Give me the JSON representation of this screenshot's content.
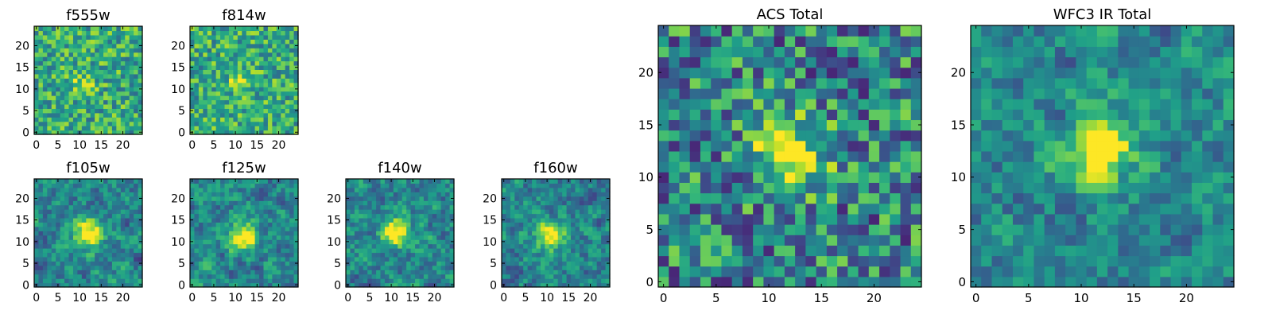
{
  "chart_data": [
    {
      "type": "heatmap",
      "title": "f555w",
      "colormap": "viridis",
      "pattern": "grainy",
      "center": [
        10.5,
        11
      ],
      "seed": 1,
      "xlim": [
        -0.5,
        24.5
      ],
      "ylim": [
        -0.5,
        24.5
      ],
      "xticks": [
        0,
        5,
        10,
        15,
        20
      ],
      "yticks": [
        0,
        5,
        10,
        15,
        20
      ],
      "grid": false
    },
    {
      "type": "heatmap",
      "title": "f814w",
      "colormap": "viridis",
      "pattern": "grainy",
      "center": [
        11,
        12
      ],
      "seed": 2,
      "xlim": [
        -0.5,
        24.5
      ],
      "ylim": [
        -0.5,
        24.5
      ],
      "xticks": [
        0,
        5,
        10,
        15,
        20
      ],
      "yticks": [
        0,
        5,
        10,
        15,
        20
      ],
      "grid": false
    },
    {
      "type": "heatmap",
      "title": "f105w",
      "colormap": "viridis",
      "pattern": "smooth",
      "center": [
        12,
        12
      ],
      "seed": 3,
      "xlim": [
        -0.5,
        24.5
      ],
      "ylim": [
        -0.5,
        24.5
      ],
      "xticks": [
        0,
        5,
        10,
        15,
        20
      ],
      "yticks": [
        0,
        5,
        10,
        15,
        20
      ],
      "grid": false
    },
    {
      "type": "heatmap",
      "title": "f125w",
      "colormap": "viridis",
      "pattern": "smooth",
      "center": [
        12,
        11
      ],
      "seed": 4,
      "xlim": [
        -0.5,
        24.5
      ],
      "ylim": [
        -0.5,
        24.5
      ],
      "xticks": [
        0,
        5,
        10,
        15,
        20
      ],
      "yticks": [
        0,
        5,
        10,
        15,
        20
      ],
      "grid": false
    },
    {
      "type": "heatmap",
      "title": "f140w",
      "colormap": "viridis",
      "pattern": "smooth",
      "center": [
        11,
        12
      ],
      "seed": 5,
      "xlim": [
        -0.5,
        24.5
      ],
      "ylim": [
        -0.5,
        24.5
      ],
      "xticks": [
        0,
        5,
        10,
        15,
        20
      ],
      "yticks": [
        0,
        5,
        10,
        15,
        20
      ],
      "grid": false
    },
    {
      "type": "heatmap",
      "title": "f160w",
      "colormap": "viridis",
      "pattern": "smooth",
      "center": [
        11,
        12
      ],
      "seed": 6,
      "xlim": [
        -0.5,
        24.5
      ],
      "ylim": [
        -0.5,
        24.5
      ],
      "xticks": [
        0,
        5,
        10,
        15,
        20
      ],
      "yticks": [
        0,
        5,
        10,
        15,
        20
      ],
      "grid": false
    },
    {
      "type": "heatmap",
      "title": "ACS Total",
      "colormap": "viridis",
      "pattern": "blocky",
      "center": [
        12,
        12
      ],
      "seed": 7,
      "xlim": [
        -0.5,
        24.5
      ],
      "ylim": [
        -0.5,
        24.5
      ],
      "xticks": [
        0,
        5,
        10,
        15,
        20
      ],
      "yticks": [
        0,
        5,
        10,
        15,
        20
      ],
      "grid": false
    },
    {
      "type": "heatmap",
      "title": "WFC3 IR Total",
      "colormap": "viridis",
      "pattern": "smooth",
      "center": [
        11.5,
        12.5
      ],
      "seed": 8,
      "xlim": [
        -0.5,
        24.5
      ],
      "ylim": [
        -0.5,
        24.5
      ],
      "xticks": [
        0,
        5,
        10,
        15,
        20
      ],
      "yticks": [
        0,
        5,
        10,
        15,
        20
      ],
      "grid": false
    }
  ]
}
